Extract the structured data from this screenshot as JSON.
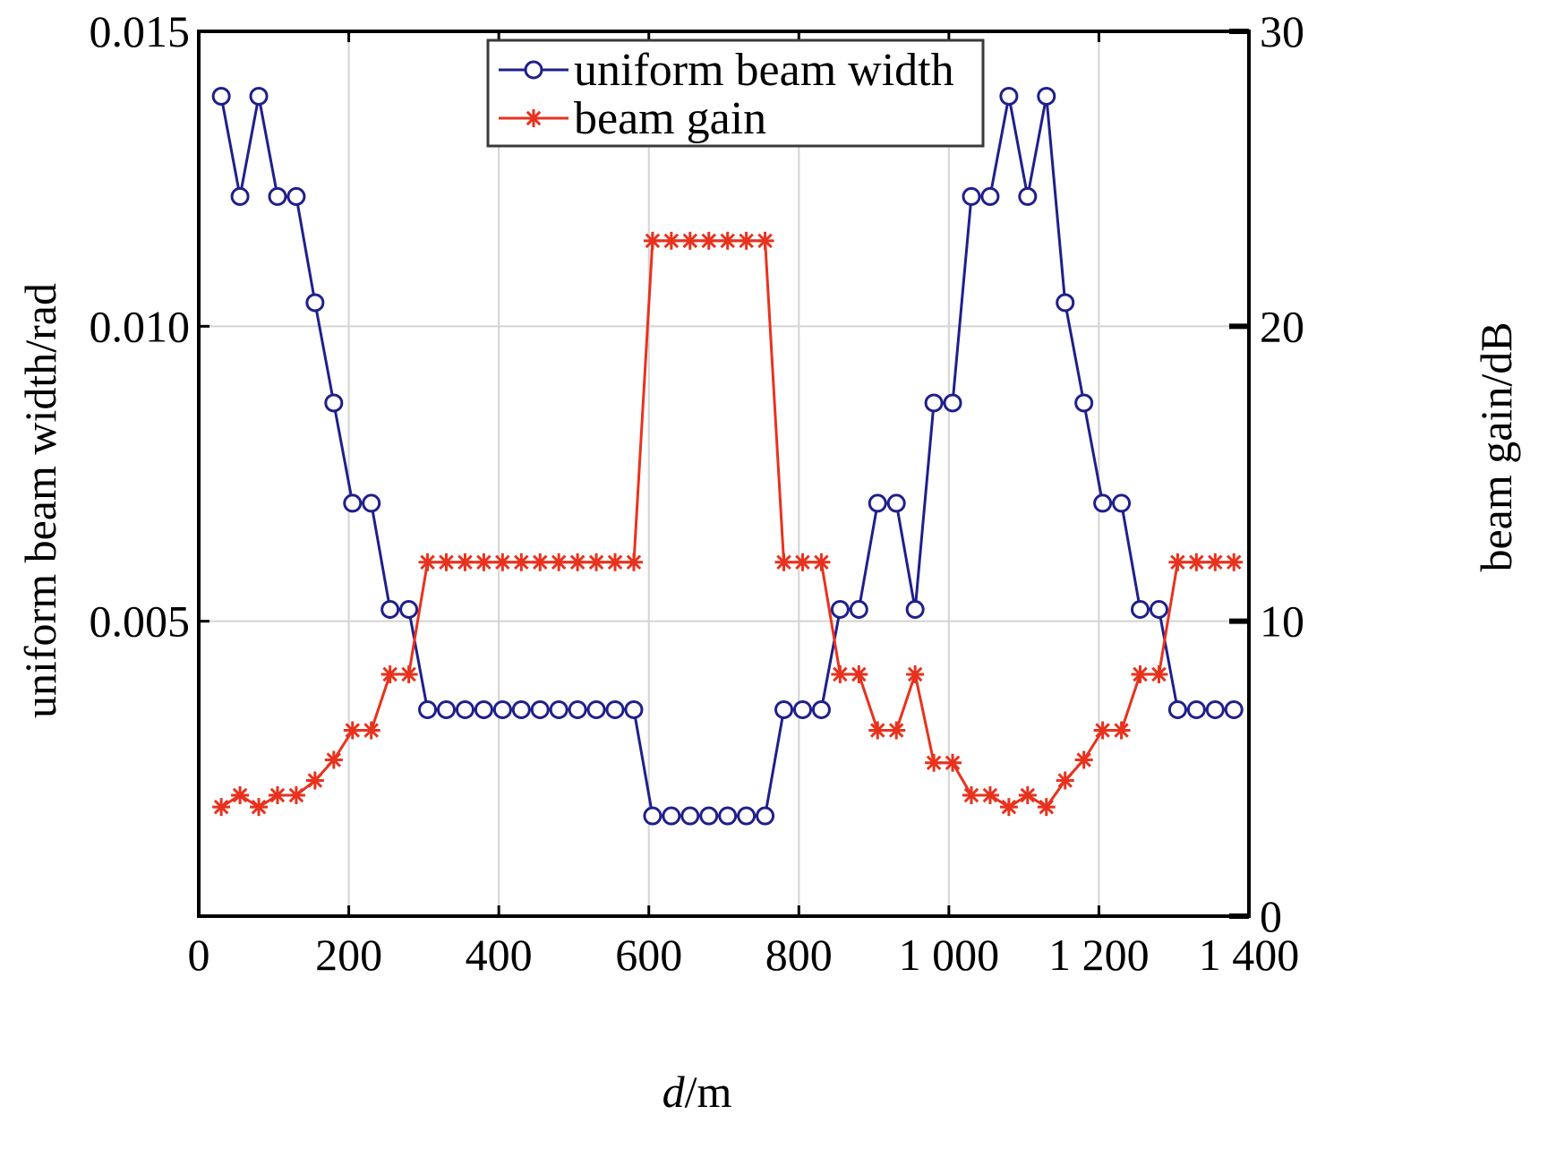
{
  "chart_data": {
    "type": "line",
    "title": "",
    "xlabel_italic": "d",
    "xlabel_rest": "/m",
    "ylabel_left": "uniform beam width/rad",
    "ylabel_right": "beam gain/dB",
    "xlim": [
      0,
      1400
    ],
    "ylim_left": [
      0,
      0.015
    ],
    "ylim_right": [
      0,
      30
    ],
    "x_ticks": [
      {
        "value": 0,
        "label": "0"
      },
      {
        "value": 200,
        "label": "200"
      },
      {
        "value": 400,
        "label": "400"
      },
      {
        "value": 600,
        "label": "600"
      },
      {
        "value": 800,
        "label": "800"
      },
      {
        "value": 1000,
        "label": "1 000"
      },
      {
        "value": 1200,
        "label": "1 200"
      },
      {
        "value": 1400,
        "label": "1 400"
      }
    ],
    "y_left_ticks": [
      {
        "value": 0.005,
        "label": "0.005"
      },
      {
        "value": 0.01,
        "label": "0.010"
      },
      {
        "value": 0.015,
        "label": "0.015"
      }
    ],
    "y_right_ticks": [
      {
        "value": 0,
        "label": "0"
      },
      {
        "value": 10,
        "label": "10"
      },
      {
        "value": 20,
        "label": "20"
      },
      {
        "value": 30,
        "label": "30"
      }
    ],
    "grid": true,
    "legend_position": "top-center",
    "x": [
      30,
      55,
      80,
      105,
      130,
      155,
      180,
      205,
      230,
      255,
      280,
      305,
      330,
      355,
      380,
      405,
      430,
      455,
      480,
      505,
      530,
      555,
      580,
      605,
      630,
      655,
      680,
      705,
      730,
      755,
      780,
      805,
      830,
      855,
      880,
      905,
      930,
      955,
      980,
      1005,
      1030,
      1055,
      1080,
      1105,
      1130,
      1155,
      1180,
      1205,
      1230,
      1255,
      1280,
      1305,
      1330,
      1355,
      1380
    ],
    "series": [
      {
        "name": "uniform beam width",
        "axis": "left",
        "color": "#1f1f8c",
        "marker": "circle",
        "values": [
          0.0139,
          0.0122,
          0.0139,
          0.0122,
          0.0122,
          0.0104,
          0.0087,
          0.007,
          0.007,
          0.0052,
          0.0052,
          0.0035,
          0.0035,
          0.0035,
          0.0035,
          0.0035,
          0.0035,
          0.0035,
          0.0035,
          0.0035,
          0.0035,
          0.0035,
          0.0035,
          0.0017,
          0.0017,
          0.0017,
          0.0017,
          0.0017,
          0.0017,
          0.0017,
          0.0035,
          0.0035,
          0.0035,
          0.0052,
          0.0052,
          0.007,
          0.007,
          0.0052,
          0.0087,
          0.0087,
          0.0122,
          0.0122,
          0.0139,
          0.0122,
          0.0139,
          0.0104,
          0.0087,
          0.007,
          0.007,
          0.0052,
          0.0052,
          0.0035,
          0.0035,
          0.0035,
          0.0035
        ]
      },
      {
        "name": "beam gain",
        "axis": "right",
        "color": "#e8321e",
        "marker": "asterisk",
        "values": [
          3.7,
          4.1,
          3.7,
          4.1,
          4.1,
          4.6,
          5.3,
          6.3,
          6.3,
          8.2,
          8.2,
          12.0,
          12.0,
          12.0,
          12.0,
          12.0,
          12.0,
          12.0,
          12.0,
          12.0,
          12.0,
          12.0,
          12.0,
          22.9,
          22.9,
          22.9,
          22.9,
          22.9,
          22.9,
          22.9,
          12.0,
          12.0,
          12.0,
          8.2,
          8.2,
          6.3,
          6.3,
          8.2,
          5.2,
          5.2,
          4.1,
          4.1,
          3.7,
          4.1,
          3.7,
          4.6,
          5.3,
          6.3,
          6.3,
          8.2,
          8.2,
          12.0,
          12.0,
          12.0,
          12.0
        ]
      }
    ]
  }
}
